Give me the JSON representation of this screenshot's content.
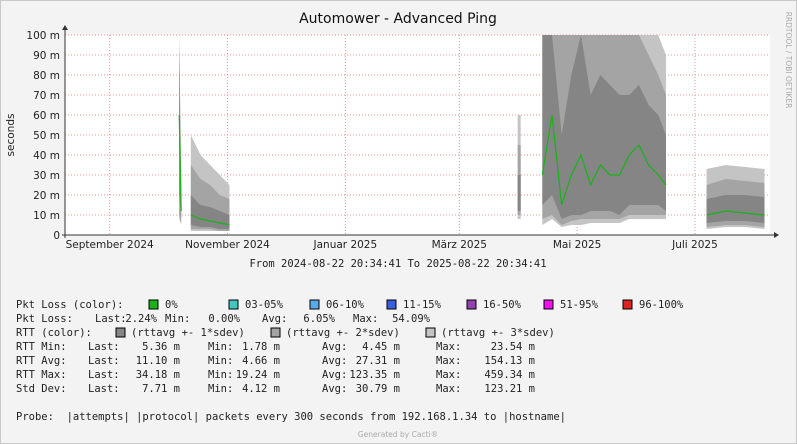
{
  "chart_data": {
    "type": "band",
    "title": "Automower - Advanced Ping",
    "y_label": "seconds",
    "side_label": "RRDTOOL / TOBI OETIKER",
    "time_range": "From 2024-08-22 20:34:41 To 2025-08-22 20:34:41",
    "xlim": [
      "2024-08-22T20:34:41",
      "2025-08-22T20:34:41"
    ],
    "xticks": [
      {
        "value": "2024-09-15",
        "label": "September 2024"
      },
      {
        "value": "2024-11-15",
        "label": "November 2024"
      },
      {
        "value": "2025-01-15",
        "label": "Januar 2025"
      },
      {
        "value": "2025-03-15",
        "label": "März 2025"
      },
      {
        "value": "2025-05-15",
        "label": "Mai 2025"
      },
      {
        "value": "2025-07-15",
        "label": "Juli 2025"
      }
    ],
    "ylim": [
      0,
      0.1
    ],
    "yticks": [
      0,
      {
        "value": 0.01,
        "label": "10 m"
      },
      {
        "value": 0.02,
        "label": "20 m"
      },
      {
        "value": 0.03,
        "label": "30 m"
      },
      {
        "value": 0.04,
        "label": "40 m"
      },
      {
        "value": 0.05,
        "label": "50 m"
      },
      {
        "value": 0.06,
        "label": "60 m"
      },
      {
        "value": 0.07,
        "label": "70 m"
      },
      {
        "value": 0.08,
        "label": "80 m"
      },
      {
        "value": 0.09,
        "label": "90 m"
      },
      {
        "value": 0.1,
        "label": "100 m"
      }
    ],
    "grid": true,
    "x": [
      "2024-10-21",
      "2024-10-22",
      "2024-10-25",
      "2024-10-27",
      "2024-11-01",
      "2024-11-06",
      "2024-11-11",
      "2024-11-16",
      "2024-11-20",
      "2025-04-15",
      "2025-04-17",
      "2025-04-27",
      "2025-05-02",
      "2025-05-07",
      "2025-05-12",
      "2025-05-17",
      "2025-05-22",
      "2025-05-27",
      "2025-06-01",
      "2025-06-06",
      "2025-06-11",
      "2025-06-16",
      "2025-06-21",
      "2025-06-26",
      "2025-06-30",
      "2025-07-03",
      "2025-07-21",
      "2025-07-31",
      "2025-08-10",
      "2025-08-20"
    ],
    "series": [
      {
        "name": "(rttavg +- 3*sdev)",
        "color": "#c4c4c4",
        "values": [
          0.1,
          0.03,
          null,
          0.05,
          0.04,
          0.035,
          0.03,
          0.025,
          null,
          0.06,
          null,
          0.1,
          0.1,
          0.1,
          0.1,
          0.1,
          0.1,
          0.1,
          0.1,
          0.1,
          0.1,
          0.1,
          0.1,
          0.1,
          0.09,
          null,
          0.033,
          0.035,
          0.034,
          0.033
        ],
        "lower": [
          0.008,
          0.005,
          null,
          0.002,
          0.002,
          0.002,
          0.002,
          0.002,
          null,
          0.008,
          null,
          0.005,
          0.008,
          0.004,
          0.005,
          0.005,
          0.006,
          0.006,
          0.006,
          0.006,
          0.008,
          0.008,
          0.008,
          0.008,
          0.008,
          null,
          0.003,
          0.004,
          0.004,
          0.003
        ]
      },
      {
        "name": "(rttavg +- 2*sdev)",
        "color": "#a4a4a4",
        "values": [
          0.1,
          0.025,
          null,
          0.035,
          0.028,
          0.025,
          0.02,
          0.018,
          null,
          0.045,
          null,
          0.1,
          0.1,
          0.1,
          0.1,
          0.1,
          0.1,
          0.1,
          0.1,
          0.1,
          0.1,
          0.1,
          0.09,
          0.08,
          0.07,
          null,
          0.025,
          0.028,
          0.027,
          0.026
        ],
        "lower": [
          0.01,
          0.006,
          null,
          0.003,
          0.003,
          0.003,
          0.002,
          0.002,
          null,
          0.01,
          null,
          0.008,
          0.01,
          0.005,
          0.007,
          0.008,
          0.008,
          0.008,
          0.008,
          0.008,
          0.01,
          0.01,
          0.01,
          0.01,
          0.01,
          null,
          0.004,
          0.005,
          0.005,
          0.004
        ]
      },
      {
        "name": "(rttavg +- 1*sdev)",
        "color": "#858585",
        "values": [
          0.09,
          0.02,
          null,
          0.02,
          0.015,
          0.014,
          0.012,
          0.01,
          null,
          0.03,
          null,
          0.1,
          0.1,
          0.05,
          0.08,
          0.1,
          0.07,
          0.08,
          0.075,
          0.07,
          0.07,
          0.075,
          0.065,
          0.06,
          0.05,
          null,
          0.018,
          0.02,
          0.02,
          0.019
        ],
        "lower": [
          0.02,
          0.008,
          null,
          0.005,
          0.004,
          0.004,
          0.003,
          0.003,
          null,
          0.012,
          null,
          0.015,
          0.02,
          0.008,
          0.01,
          0.01,
          0.012,
          0.012,
          0.012,
          0.01,
          0.015,
          0.015,
          0.015,
          0.015,
          0.012,
          null,
          0.006,
          0.007,
          0.007,
          0.006
        ]
      }
    ],
    "avg_line": {
      "color": "#17b317",
      "values": [
        0.06,
        0.012,
        null,
        0.01,
        0.008,
        0.007,
        0.006,
        0.005,
        null,
        0.02,
        null,
        0.03,
        0.06,
        0.015,
        0.03,
        0.04,
        0.025,
        0.035,
        0.03,
        0.03,
        0.04,
        0.045,
        0.035,
        0.03,
        0.025,
        null,
        0.01,
        0.012,
        0.011,
        0.01
      ]
    }
  },
  "legend": {
    "loss_title": "Pkt Loss (color):",
    "loss_items": [
      {
        "label": "0%",
        "color": "#17b317"
      },
      {
        "label": "03-05%",
        "color": "#40c8c0"
      },
      {
        "label": "06-10%",
        "color": "#5aaae8"
      },
      {
        "label": "11-15%",
        "color": "#3a5ee0"
      },
      {
        "label": "16-50%",
        "color": "#9440b0"
      },
      {
        "label": "51-95%",
        "color": "#f010f0"
      },
      {
        "label": "96-100%",
        "color": "#e02424"
      }
    ],
    "rtt_title": "RTT (color):",
    "stats": [
      [
        "Pkt Loss:",
        "Last:",
        "2.24%",
        "Min:",
        "0.00%",
        "Avg:",
        "6.05%",
        "Max:",
        "54.09%"
      ],
      [
        "RTT Min:",
        "Last:",
        "5.36 m",
        "Min:",
        "1.78 m",
        "Avg:",
        "4.45 m",
        "Max:",
        "23.54 m"
      ],
      [
        "RTT Avg:",
        "Last:",
        "11.10 m",
        "Min:",
        "4.66 m",
        "Avg:",
        "27.31 m",
        "Max:",
        "154.13 m"
      ],
      [
        "RTT Max:",
        "Last:",
        "34.18 m",
        "Min:",
        "19.24 m",
        "Avg:",
        "123.35 m",
        "Max:",
        "459.34 m"
      ],
      [
        "Std Dev:",
        "Last:",
        "7.71 m",
        "Min:",
        "4.12 m",
        "Avg:",
        "30.79 m",
        "Max:",
        "123.21 m"
      ]
    ],
    "probe": "Probe:  |attempts| |protocol| packets every 300 seconds from 192.168.1.34 to |hostname|",
    "footer": "Generated by Cacti®"
  }
}
